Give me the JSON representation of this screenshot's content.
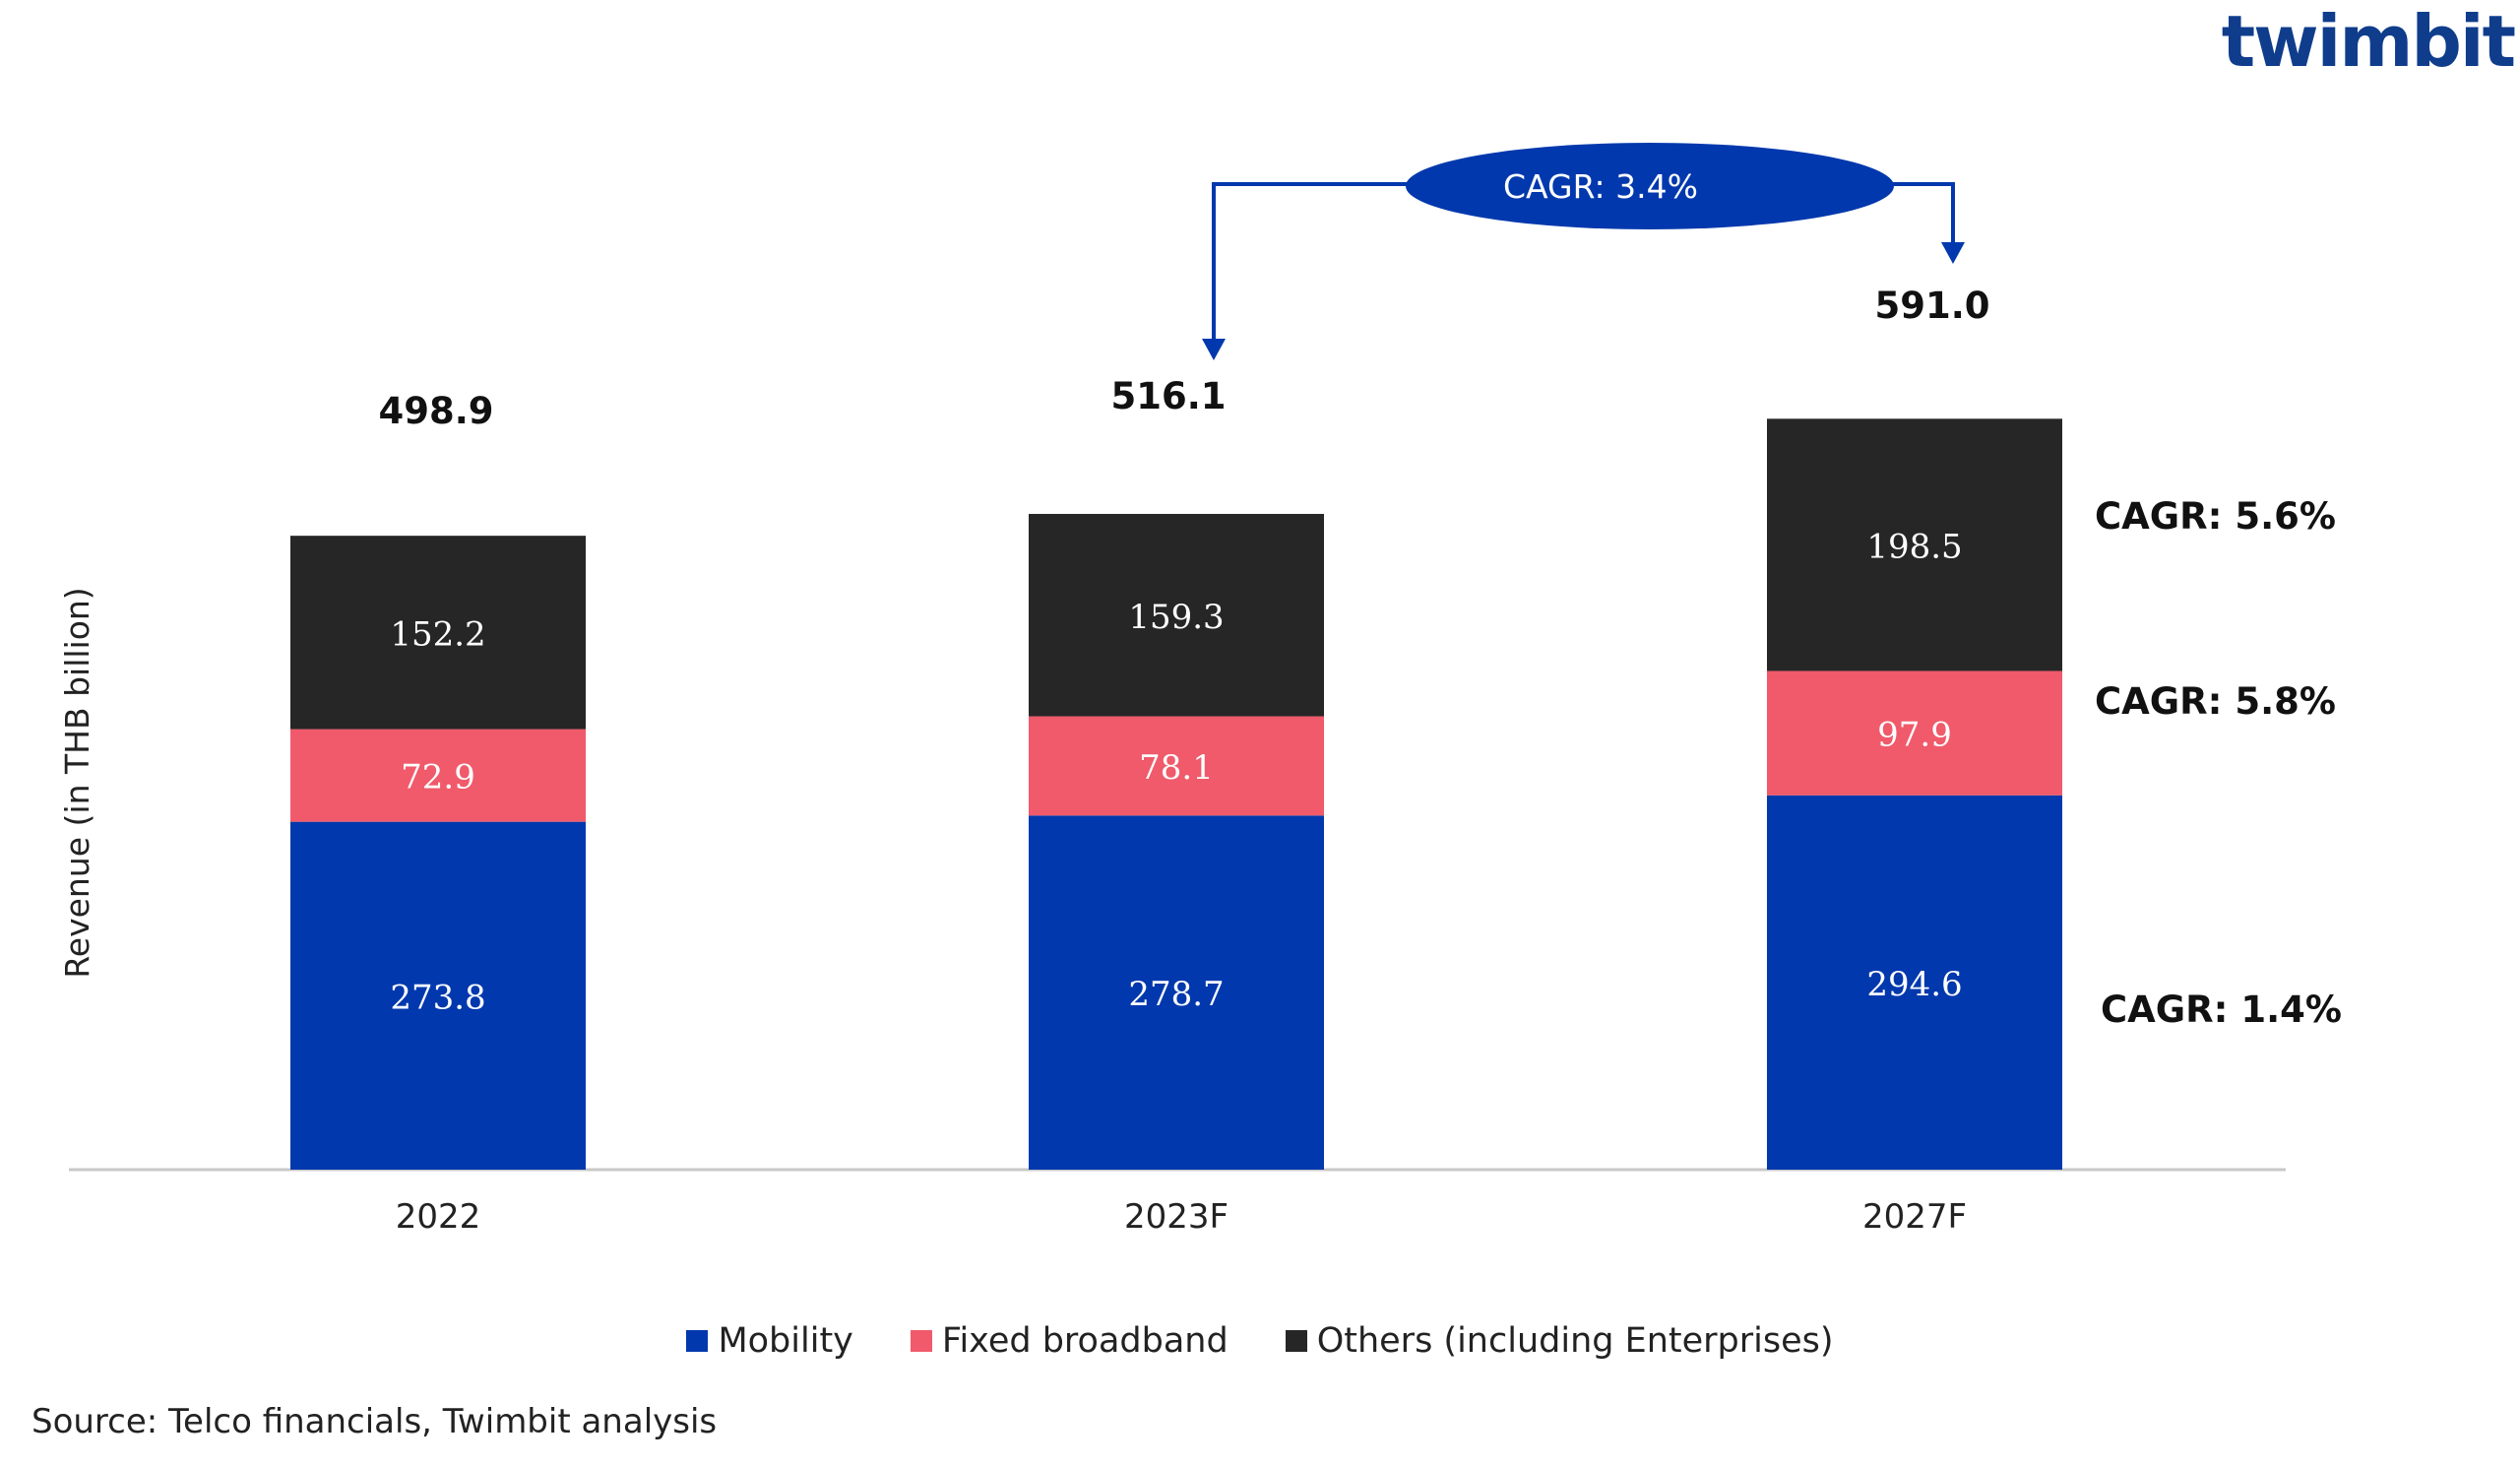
{
  "brand": {
    "logo_text": "twimbit"
  },
  "source": "Source: Telco financials, Twimbit analysis",
  "colors": {
    "mobility": "#0138ad",
    "fixed_broadband": "#f05a6a",
    "others": "#262626",
    "cagr_bubble": "#0138ad"
  },
  "chart_data": {
    "type": "bar",
    "stacked": true,
    "ylabel": "Revenue (in THB billion)",
    "xlabel": "",
    "categories": [
      "2022",
      "2023F",
      "2027F"
    ],
    "series": [
      {
        "name": "Mobility",
        "values": [
          273.8,
          278.7,
          294.6
        ],
        "labels": [
          "273.8",
          "278.7",
          "294.6"
        ]
      },
      {
        "name": "Fixed broadband",
        "values": [
          72.9,
          78.1,
          97.9
        ],
        "labels": [
          "72.9",
          "78.1",
          "97.9"
        ]
      },
      {
        "name": "Others (including Enterprises)",
        "values": [
          152.2,
          159.3,
          198.5
        ],
        "labels": [
          "152.2",
          "159.3",
          "198.5"
        ]
      }
    ],
    "totals": [
      "498.9",
      "516.1",
      "591.0"
    ],
    "series_cagr": [
      "CAGR: 1.4%",
      "CAGR: 5.8%",
      "CAGR: 5.6%"
    ],
    "overall_cagr": "CAGR: 3.4%",
    "grid": false,
    "legend_position": "bottom"
  }
}
